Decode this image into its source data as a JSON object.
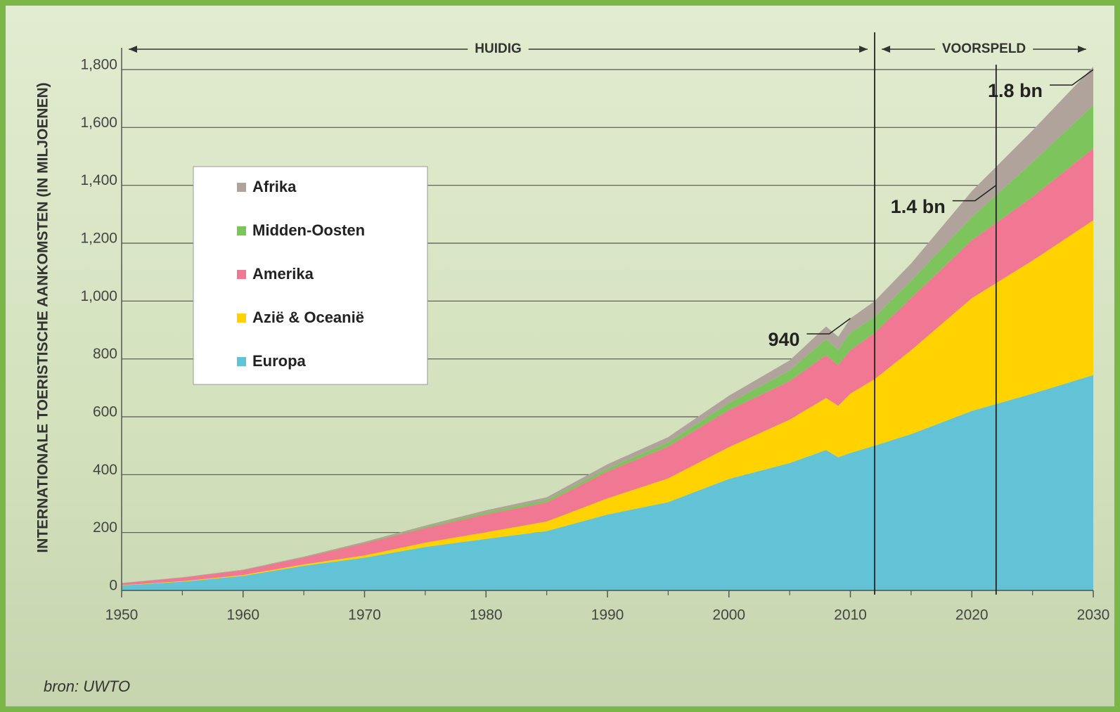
{
  "chart_data": {
    "type": "stacked-area",
    "y_label": "INTERNATIONALE TOERISTISCHE AANKOMSTEN (IN MILJOENEN)",
    "periods": [
      {
        "label": "HUIDIG",
        "from": 1950,
        "to": 2012
      },
      {
        "label": "VOORSPELD",
        "from": 2012,
        "to": 2030
      }
    ],
    "dividers": [
      2012,
      2022
    ],
    "source": "bron: UWTO",
    "x": [
      1950,
      1955,
      1960,
      1965,
      1970,
      1975,
      1980,
      1985,
      1990,
      1995,
      2000,
      2005,
      2008,
      2009,
      2010,
      2012,
      2015,
      2020,
      2025,
      2030
    ],
    "series": [
      {
        "name": "Europa",
        "color": "#62c3d6",
        "values": [
          17,
          30,
          50,
          85,
          113,
          150,
          178,
          205,
          262,
          305,
          385,
          440,
          485,
          460,
          475,
          500,
          540,
          620,
          680,
          744
        ]
      },
      {
        "name": "Azië & Oceanië",
        "color": "#ffd200",
        "values": [
          1,
          2,
          3,
          5,
          8,
          15,
          23,
          33,
          56,
          82,
          110,
          150,
          180,
          178,
          205,
          230,
          290,
          390,
          460,
          535
        ]
      },
      {
        "name": "Amerika",
        "color": "#f07892",
        "values": [
          7,
          12,
          17,
          24,
          42,
          50,
          62,
          66,
          93,
          110,
          128,
          133,
          148,
          140,
          150,
          160,
          180,
          200,
          220,
          248
        ]
      },
      {
        "name": "Midden-Oosten",
        "color": "#7ec45c",
        "values": [
          0.2,
          0.5,
          1,
          1,
          2,
          4,
          7,
          8,
          10,
          14,
          24,
          37,
          55,
          53,
          60,
          55,
          60,
          80,
          120,
          149
        ]
      },
      {
        "name": "Afrika",
        "color": "#b0a39c",
        "values": [
          0.5,
          1,
          1,
          2,
          3,
          5,
          7,
          10,
          15,
          19,
          26,
          35,
          44,
          46,
          50,
          55,
          60,
          90,
          110,
          134
        ]
      }
    ],
    "annotations": [
      {
        "label": "940",
        "x": 2010,
        "y": 940
      },
      {
        "label": "1.4 bn",
        "x": 2022,
        "y": 1400
      },
      {
        "label": "1.8 bn",
        "x": 2030,
        "y": 1800
      }
    ],
    "xlim": [
      1950,
      2030
    ],
    "xticks": [
      1950,
      1960,
      1970,
      1980,
      1990,
      2000,
      2010,
      2020,
      2030
    ],
    "ylim": [
      0,
      1800
    ],
    "yticks": [
      0,
      200,
      400,
      600,
      800,
      {
        "value": 1000,
        "label": "1,000"
      },
      {
        "value": 1200,
        "label": "1,200"
      },
      {
        "value": 1400,
        "label": "1,400"
      },
      {
        "value": 1600,
        "label": "1,600"
      },
      {
        "value": 1800,
        "label": "1,800"
      }
    ],
    "grid": true
  }
}
